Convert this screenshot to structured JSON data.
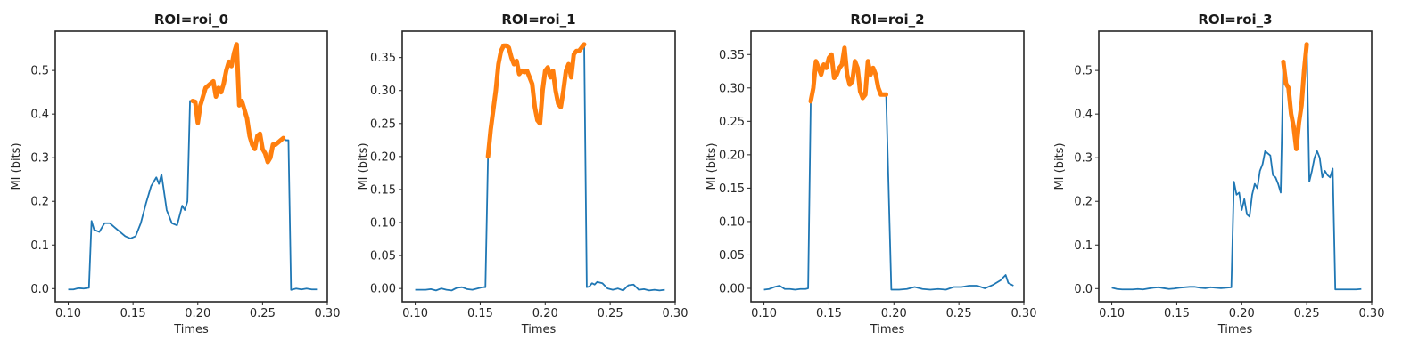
{
  "figure": {
    "background": "#ffffff",
    "colors": {
      "base": "#1f77b4",
      "highlight": "#ff7f0e"
    }
  },
  "chart_data": [
    {
      "type": "line",
      "title": "ROI=roi_0",
      "xlabel": "Times",
      "ylabel": "MI (bits)",
      "xlim": [
        0.09,
        0.3
      ],
      "ylim": [
        -0.03,
        0.59
      ],
      "xticks": [
        0.1,
        0.15,
        0.2,
        0.25,
        0.3
      ],
      "xtick_labels": [
        "0.10",
        "0.15",
        "0.20",
        "0.25",
        "0.30"
      ],
      "yticks": [
        0.0,
        0.1,
        0.2,
        0.3,
        0.4,
        0.5
      ],
      "ytick_labels": [
        "0.0",
        "0.1",
        "0.2",
        "0.3",
        "0.4",
        "0.5"
      ],
      "grid": false,
      "x": [
        0.1,
        0.104,
        0.108,
        0.112,
        0.116,
        0.118,
        0.12,
        0.124,
        0.128,
        0.132,
        0.136,
        0.14,
        0.144,
        0.148,
        0.152,
        0.156,
        0.16,
        0.164,
        0.168,
        0.17,
        0.172,
        0.176,
        0.18,
        0.184,
        0.188,
        0.19,
        0.192,
        0.194,
        0.196,
        0.198,
        0.2,
        0.202,
        0.204,
        0.206,
        0.208,
        0.21,
        0.212,
        0.214,
        0.216,
        0.218,
        0.22,
        0.222,
        0.224,
        0.226,
        0.228,
        0.23,
        0.232,
        0.234,
        0.236,
        0.238,
        0.24,
        0.242,
        0.244,
        0.246,
        0.248,
        0.25,
        0.252,
        0.254,
        0.256,
        0.258,
        0.26,
        0.262,
        0.264,
        0.266,
        0.268,
        0.27,
        0.272,
        0.276,
        0.28,
        0.284,
        0.288,
        0.292
      ],
      "series": [
        {
          "role": "base",
          "values": [
            -0.002,
            -0.002,
            0.001,
            0.0,
            0.002,
            0.155,
            0.135,
            0.13,
            0.15,
            0.15,
            0.14,
            0.13,
            0.12,
            0.115,
            0.12,
            0.15,
            0.195,
            0.235,
            0.255,
            0.24,
            0.262,
            0.18,
            0.15,
            0.145,
            0.19,
            0.18,
            0.2,
            0.43,
            0.43,
            0.428,
            0.38,
            0.42,
            0.44,
            0.46,
            0.465,
            0.47,
            0.475,
            0.44,
            0.46,
            0.45,
            0.47,
            0.5,
            0.52,
            0.51,
            0.54,
            0.56,
            0.42,
            0.43,
            0.41,
            0.39,
            0.35,
            0.33,
            0.32,
            0.35,
            0.355,
            0.32,
            0.31,
            0.29,
            0.3,
            0.33,
            0.33,
            0.335,
            0.34,
            0.345,
            0.34,
            0.34,
            -0.003,
            0.0,
            -0.002,
            0.0,
            -0.002,
            -0.002
          ]
        },
        {
          "role": "highlight",
          "values": [
            null,
            null,
            null,
            null,
            null,
            null,
            null,
            null,
            null,
            null,
            null,
            null,
            null,
            null,
            null,
            null,
            null,
            null,
            null,
            null,
            null,
            null,
            null,
            null,
            null,
            null,
            null,
            null,
            0.43,
            0.428,
            0.38,
            0.42,
            0.44,
            0.46,
            0.465,
            0.47,
            0.475,
            0.44,
            0.46,
            0.45,
            0.47,
            0.5,
            0.52,
            0.51,
            0.54,
            0.56,
            0.42,
            0.43,
            0.41,
            0.39,
            0.35,
            0.33,
            0.32,
            0.35,
            0.355,
            0.32,
            0.31,
            0.29,
            0.3,
            0.33,
            0.33,
            0.335,
            0.34,
            0.345,
            null,
            null,
            null,
            null,
            null,
            null,
            null,
            null
          ]
        }
      ]
    },
    {
      "type": "line",
      "title": "ROI=roi_1",
      "xlabel": "Times",
      "ylabel": "MI (bits)",
      "xlim": [
        0.09,
        0.3
      ],
      "ylim": [
        -0.02,
        0.39
      ],
      "xticks": [
        0.1,
        0.15,
        0.2,
        0.25,
        0.3
      ],
      "xtick_labels": [
        "0.10",
        "0.15",
        "0.20",
        "0.25",
        "0.30"
      ],
      "yticks": [
        0.0,
        0.05,
        0.1,
        0.15,
        0.2,
        0.25,
        0.3,
        0.35
      ],
      "ytick_labels": [
        "0.00",
        "0.05",
        "0.10",
        "0.15",
        "0.20",
        "0.25",
        "0.30",
        "0.35"
      ],
      "grid": false,
      "x": [
        0.1,
        0.104,
        0.108,
        0.112,
        0.116,
        0.12,
        0.124,
        0.128,
        0.132,
        0.136,
        0.14,
        0.144,
        0.148,
        0.152,
        0.154,
        0.156,
        0.158,
        0.16,
        0.162,
        0.164,
        0.166,
        0.168,
        0.17,
        0.172,
        0.174,
        0.176,
        0.178,
        0.18,
        0.182,
        0.184,
        0.186,
        0.188,
        0.19,
        0.192,
        0.194,
        0.196,
        0.198,
        0.2,
        0.202,
        0.204,
        0.206,
        0.208,
        0.21,
        0.212,
        0.214,
        0.216,
        0.218,
        0.22,
        0.222,
        0.224,
        0.226,
        0.228,
        0.23,
        0.232,
        0.234,
        0.236,
        0.238,
        0.24,
        0.244,
        0.248,
        0.252,
        0.256,
        0.26,
        0.264,
        0.268,
        0.272,
        0.276,
        0.28,
        0.284,
        0.288,
        0.292
      ],
      "series": [
        {
          "role": "base",
          "values": [
            -0.002,
            -0.002,
            -0.002,
            -0.001,
            -0.003,
            0.0,
            -0.002,
            -0.003,
            0.001,
            0.002,
            -0.001,
            -0.002,
            0.0,
            0.002,
            0.002,
            0.2,
            0.24,
            0.27,
            0.3,
            0.34,
            0.36,
            0.368,
            0.368,
            0.365,
            0.35,
            0.34,
            0.345,
            0.325,
            0.33,
            0.328,
            0.33,
            0.32,
            0.31,
            0.275,
            0.255,
            0.25,
            0.3,
            0.33,
            0.335,
            0.32,
            0.33,
            0.3,
            0.28,
            0.275,
            0.3,
            0.33,
            0.34,
            0.32,
            0.355,
            0.36,
            0.36,
            0.365,
            0.37,
            0.002,
            0.003,
            0.008,
            0.006,
            0.01,
            0.008,
            0.0,
            -0.002,
            0.0,
            -0.003,
            0.005,
            0.006,
            -0.002,
            -0.001,
            -0.003,
            -0.002,
            -0.003,
            -0.002
          ]
        },
        {
          "role": "highlight",
          "values": [
            null,
            null,
            null,
            null,
            null,
            null,
            null,
            null,
            null,
            null,
            null,
            null,
            null,
            null,
            null,
            0.2,
            0.24,
            0.27,
            0.3,
            0.34,
            0.36,
            0.368,
            0.368,
            0.365,
            0.35,
            0.34,
            0.345,
            0.325,
            0.33,
            0.328,
            0.33,
            0.32,
            0.31,
            0.275,
            0.255,
            0.25,
            0.3,
            0.33,
            0.335,
            0.32,
            0.33,
            0.3,
            0.28,
            0.275,
            0.3,
            0.33,
            0.34,
            0.32,
            0.355,
            0.36,
            0.36,
            0.365,
            0.37,
            null,
            null,
            null,
            null,
            null,
            null,
            null,
            null,
            null,
            null,
            null,
            null,
            null,
            null,
            null,
            null,
            null,
            null
          ]
        }
      ]
    },
    {
      "type": "line",
      "title": "ROI=roi_2",
      "xlabel": "Times",
      "ylabel": "MI (bits)",
      "xlim": [
        0.09,
        0.3
      ],
      "ylim": [
        -0.02,
        0.385
      ],
      "xticks": [
        0.1,
        0.15,
        0.2,
        0.25,
        0.3
      ],
      "xtick_labels": [
        "0.10",
        "0.15",
        "0.20",
        "0.25",
        "0.30"
      ],
      "yticks": [
        0.0,
        0.05,
        0.1,
        0.15,
        0.2,
        0.25,
        0.3,
        0.35
      ],
      "ytick_labels": [
        "0.00",
        "0.05",
        "0.10",
        "0.15",
        "0.20",
        "0.25",
        "0.30",
        "0.35"
      ],
      "grid": false,
      "x": [
        0.1,
        0.104,
        0.108,
        0.112,
        0.116,
        0.12,
        0.124,
        0.128,
        0.132,
        0.134,
        0.136,
        0.138,
        0.14,
        0.142,
        0.144,
        0.146,
        0.148,
        0.15,
        0.152,
        0.154,
        0.156,
        0.158,
        0.16,
        0.162,
        0.164,
        0.166,
        0.168,
        0.17,
        0.172,
        0.174,
        0.176,
        0.178,
        0.18,
        0.182,
        0.184,
        0.186,
        0.188,
        0.19,
        0.192,
        0.194,
        0.198,
        0.204,
        0.21,
        0.216,
        0.222,
        0.228,
        0.234,
        0.24,
        0.246,
        0.252,
        0.258,
        0.264,
        0.27,
        0.276,
        0.282,
        0.286,
        0.288,
        0.292
      ],
      "series": [
        {
          "role": "base",
          "values": [
            -0.002,
            -0.001,
            0.002,
            0.004,
            -0.001,
            -0.001,
            -0.002,
            -0.001,
            -0.001,
            0.0,
            0.28,
            0.3,
            0.34,
            0.33,
            0.32,
            0.335,
            0.33,
            0.345,
            0.35,
            0.315,
            0.32,
            0.33,
            0.335,
            0.36,
            0.32,
            0.305,
            0.31,
            0.34,
            0.33,
            0.295,
            0.285,
            0.29,
            0.34,
            0.32,
            0.33,
            0.32,
            0.3,
            0.29,
            0.29,
            0.29,
            -0.002,
            -0.002,
            -0.001,
            0.002,
            -0.001,
            -0.002,
            -0.001,
            -0.002,
            0.002,
            0.002,
            0.004,
            0.004,
            0.0,
            0.005,
            0.012,
            0.02,
            0.008,
            0.004
          ]
        },
        {
          "role": "highlight",
          "values": [
            null,
            null,
            null,
            null,
            null,
            null,
            null,
            null,
            null,
            null,
            0.28,
            0.3,
            0.34,
            0.33,
            0.32,
            0.335,
            0.33,
            0.345,
            0.35,
            0.315,
            0.32,
            0.33,
            0.335,
            0.36,
            0.32,
            0.305,
            0.31,
            0.34,
            0.33,
            0.295,
            0.285,
            0.29,
            0.34,
            0.32,
            0.33,
            0.32,
            0.3,
            0.29,
            0.29,
            0.29,
            null,
            null,
            null,
            null,
            null,
            null,
            null,
            null,
            null,
            null,
            null,
            null,
            null,
            null,
            null,
            null,
            null,
            null
          ]
        }
      ]
    },
    {
      "type": "line",
      "title": "ROI=roi_3",
      "xlabel": "Times",
      "ylabel": "MI (bits)",
      "xlim": [
        0.09,
        0.3
      ],
      "ylim": [
        -0.03,
        0.59
      ],
      "xticks": [
        0.1,
        0.15,
        0.2,
        0.25,
        0.3
      ],
      "xtick_labels": [
        "0.10",
        "0.15",
        "0.20",
        "0.25",
        "0.30"
      ],
      "yticks": [
        0.0,
        0.1,
        0.2,
        0.3,
        0.4,
        0.5
      ],
      "ytick_labels": [
        "0.0",
        "0.1",
        "0.2",
        "0.3",
        "0.4",
        "0.5"
      ],
      "grid": false,
      "x": [
        0.1,
        0.104,
        0.108,
        0.112,
        0.116,
        0.12,
        0.124,
        0.128,
        0.132,
        0.136,
        0.14,
        0.144,
        0.148,
        0.152,
        0.156,
        0.16,
        0.164,
        0.168,
        0.172,
        0.176,
        0.18,
        0.184,
        0.188,
        0.192,
        0.194,
        0.196,
        0.198,
        0.2,
        0.202,
        0.204,
        0.206,
        0.208,
        0.21,
        0.212,
        0.214,
        0.216,
        0.218,
        0.22,
        0.222,
        0.224,
        0.226,
        0.228,
        0.23,
        0.232,
        0.234,
        0.236,
        0.238,
        0.24,
        0.242,
        0.244,
        0.246,
        0.248,
        0.25,
        0.252,
        0.254,
        0.256,
        0.258,
        0.26,
        0.262,
        0.264,
        0.266,
        0.268,
        0.27,
        0.272,
        0.276,
        0.28,
        0.284,
        0.288,
        0.292
      ],
      "series": [
        {
          "role": "base",
          "values": [
            0.002,
            -0.001,
            -0.002,
            -0.002,
            -0.002,
            -0.001,
            -0.002,
            0.0,
            0.002,
            0.003,
            0.001,
            -0.001,
            0.0,
            0.002,
            0.003,
            0.004,
            0.004,
            0.002,
            0.001,
            0.003,
            0.002,
            0.001,
            0.002,
            0.003,
            0.245,
            0.215,
            0.22,
            0.18,
            0.205,
            0.17,
            0.165,
            0.215,
            0.24,
            0.23,
            0.27,
            0.285,
            0.315,
            0.31,
            0.305,
            0.26,
            0.255,
            0.24,
            0.22,
            0.52,
            0.47,
            0.46,
            0.4,
            0.37,
            0.32,
            0.38,
            0.42,
            0.5,
            0.56,
            0.245,
            0.27,
            0.3,
            0.315,
            0.3,
            0.255,
            0.27,
            0.26,
            0.255,
            0.275,
            -0.002,
            -0.002,
            -0.002,
            -0.002,
            -0.002,
            -0.001
          ]
        },
        {
          "role": "highlight",
          "values": [
            null,
            null,
            null,
            null,
            null,
            null,
            null,
            null,
            null,
            null,
            null,
            null,
            null,
            null,
            null,
            null,
            null,
            null,
            null,
            null,
            null,
            null,
            null,
            null,
            null,
            null,
            null,
            null,
            null,
            null,
            null,
            null,
            null,
            null,
            null,
            null,
            null,
            null,
            null,
            null,
            null,
            null,
            null,
            0.52,
            0.47,
            0.46,
            0.4,
            0.37,
            0.32,
            0.38,
            0.42,
            0.5,
            0.56,
            null,
            null,
            null,
            null,
            null,
            null,
            null,
            null,
            null,
            null,
            null,
            null,
            null,
            null,
            null,
            null
          ]
        }
      ]
    }
  ]
}
